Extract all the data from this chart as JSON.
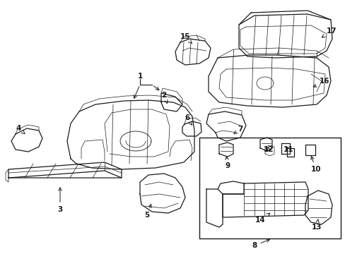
{
  "bg_color": "#ffffff",
  "line_color": "#1a1a1a",
  "figsize": [
    4.89,
    3.6
  ],
  "dpi": 100,
  "labels": {
    "1": [
      198,
      115,
      198,
      132
    ],
    "2": [
      230,
      133,
      230,
      148
    ],
    "3": [
      85,
      296,
      85,
      278
    ],
    "4": [
      27,
      192,
      38,
      201
    ],
    "5": [
      205,
      303,
      220,
      285
    ],
    "6": [
      263,
      175,
      270,
      183
    ],
    "7": [
      328,
      190,
      318,
      198
    ],
    "8": [
      360,
      348,
      385,
      334
    ],
    "9": [
      322,
      237,
      322,
      225
    ],
    "10": [
      435,
      237,
      435,
      225
    ],
    "11": [
      406,
      215,
      406,
      223
    ],
    "12": [
      382,
      215,
      382,
      225
    ],
    "13": [
      432,
      303,
      445,
      297
    ],
    "14": [
      360,
      305,
      375,
      290
    ],
    "15": [
      260,
      58,
      270,
      72
    ],
    "16": [
      437,
      113,
      432,
      120
    ],
    "17": [
      455,
      45,
      448,
      55
    ]
  }
}
